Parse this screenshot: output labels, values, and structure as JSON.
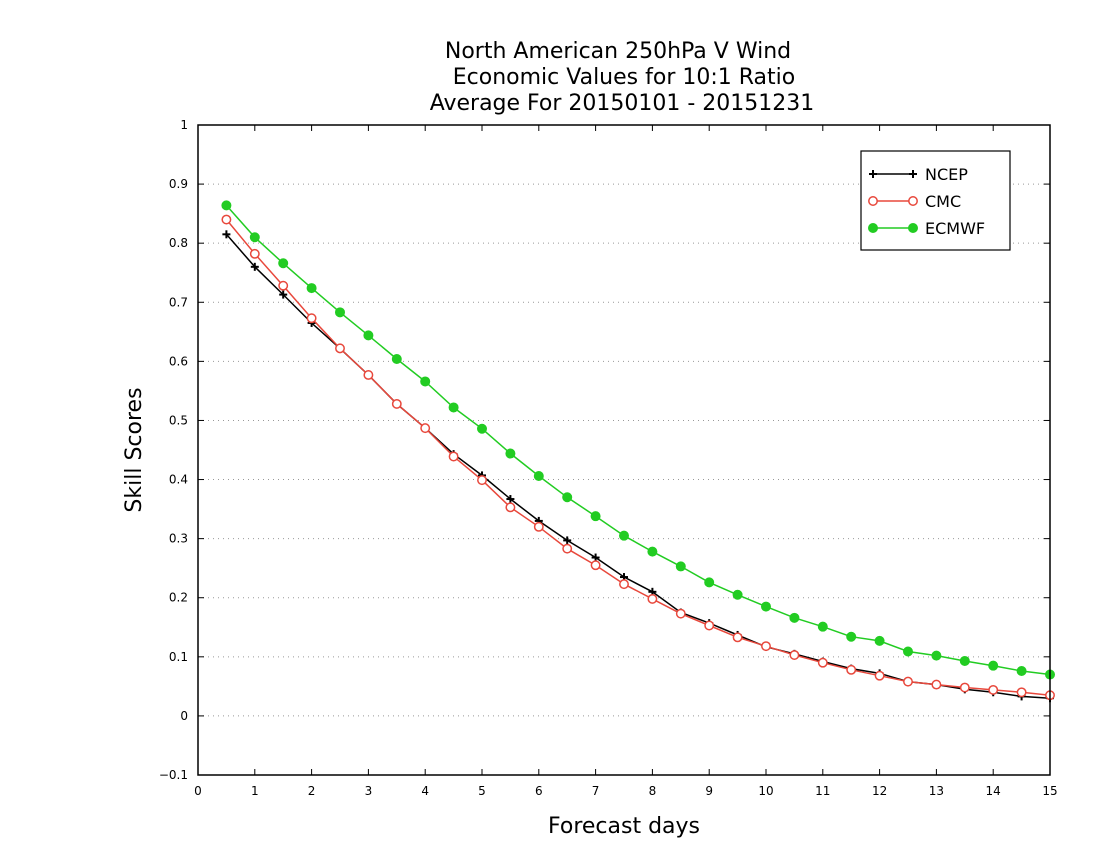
{
  "chart_data": {
    "type": "line",
    "title": [
      "North American 250hPa V Wind",
      "Economic Values for 10:1 Ratio",
      "Average For 20150101 - 20151231"
    ],
    "xlabel": "Forecast days",
    "ylabel": "Skill Scores",
    "xlim": [
      0,
      15
    ],
    "ylim": [
      -0.1,
      1
    ],
    "xticks": [
      "0",
      "1",
      "2",
      "3",
      "4",
      "5",
      "6",
      "7",
      "8",
      "9",
      "10",
      "11",
      "12",
      "13",
      "14",
      "15"
    ],
    "yticks": [
      "−0.1",
      "0",
      "0.1",
      "0.2",
      "0.3",
      "0.4",
      "0.5",
      "0.6",
      "0.7",
      "0.8",
      "0.9",
      "1"
    ],
    "grid": "horizontal dotted",
    "legend_position": "top-right",
    "x": [
      0.5,
      1,
      1.5,
      2,
      2.5,
      3,
      3.5,
      4,
      4.5,
      5,
      5.5,
      6,
      6.5,
      7,
      7.5,
      8,
      8.5,
      9,
      9.5,
      10,
      10.5,
      11,
      11.5,
      12,
      12.5,
      13,
      13.5,
      14,
      14.5,
      15
    ],
    "series": [
      {
        "name": "NCEP",
        "color": "#000000",
        "marker": "plus",
        "values": [
          0.815,
          0.76,
          0.713,
          0.665,
          0.622,
          0.577,
          0.528,
          0.487,
          0.443,
          0.407,
          0.367,
          0.33,
          0.297,
          0.268,
          0.235,
          0.21,
          0.175,
          0.157,
          0.137,
          0.117,
          0.105,
          0.092,
          0.08,
          0.072,
          0.058,
          0.053,
          0.045,
          0.04,
          0.033,
          0.03
        ]
      },
      {
        "name": "CMC",
        "color": "#e8483c",
        "marker": "open-circle",
        "values": [
          0.84,
          0.782,
          0.728,
          0.673,
          0.622,
          0.577,
          0.528,
          0.487,
          0.439,
          0.399,
          0.353,
          0.32,
          0.283,
          0.255,
          0.223,
          0.198,
          0.173,
          0.153,
          0.133,
          0.118,
          0.103,
          0.09,
          0.078,
          0.068,
          0.058,
          0.053,
          0.048,
          0.044,
          0.04,
          0.035
        ]
      },
      {
        "name": "ECMWF",
        "color": "#22cc22",
        "marker": "filled-circle",
        "values": [
          0.864,
          0.81,
          0.766,
          0.724,
          0.683,
          0.644,
          0.604,
          0.566,
          0.522,
          0.486,
          0.444,
          0.406,
          0.37,
          0.338,
          0.305,
          0.278,
          0.253,
          0.226,
          0.205,
          0.185,
          0.166,
          0.151,
          0.134,
          0.127,
          0.109,
          0.102,
          0.093,
          0.085,
          0.076,
          0.07
        ]
      }
    ]
  }
}
